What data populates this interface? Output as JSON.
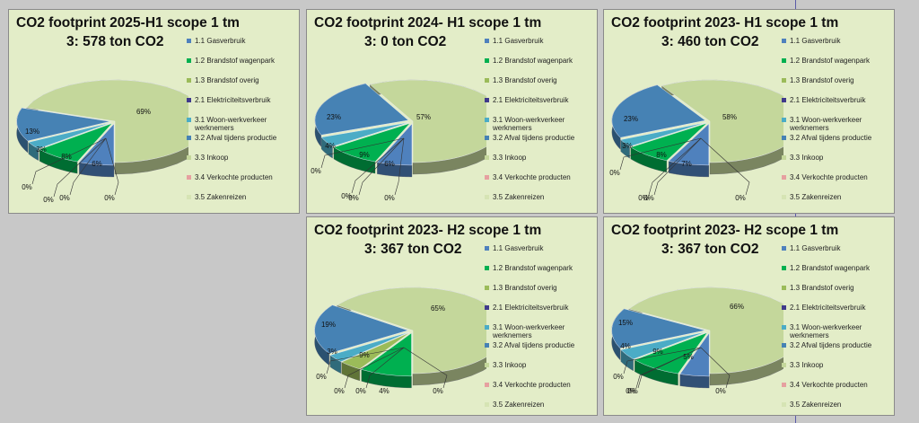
{
  "legend_labels": [
    "1.1 Gasverbruik",
    "1.2 Brandstof wagenpark",
    "1.3 Brandstof overig",
    "2.1 Elektriciteitsverbruik",
    "3.1 Woon-werkverkeer werknemers",
    "3.2 Afval tijdens productie",
    "3.3 Inkoop",
    "3.4 Verkochte producten",
    "3.5 Zakenreizen"
  ],
  "series_colors": [
    "#4f81bd",
    "#00b050",
    "#9bbb59",
    "#403a8c",
    "#4bacc6",
    "#4682b4",
    "#c4d79b",
    "#e6a0a0",
    "#d6e4b4"
  ],
  "chart_data": [
    {
      "type": "pie",
      "title_line1": "CO2 footprint 2025-H1 scope 1 tm",
      "title_line2": "3: 578 ton CO2",
      "legend_placement": "right",
      "categories": [
        "1.1 Gasverbruik",
        "1.2 Brandstof wagenpark",
        "1.3 Brandstof overig",
        "2.1 Elektriciteitsverbruik",
        "3.1 Woon-werkverkeer werknemers",
        "3.2 Afval tijdens productie",
        "3.3 Inkoop",
        "3.4 Verkochte producten",
        "3.5 Zakenreizen"
      ],
      "values": [
        6,
        8,
        0,
        0,
        3,
        13,
        69,
        0,
        0
      ],
      "data_labels": [
        "6%",
        "8%",
        "0%",
        "0%",
        "3%",
        "13%",
        "69%",
        "0%",
        "0%"
      ]
    },
    {
      "type": "pie",
      "title_line1": "CO2 footprint 2024- H1 scope 1 tm",
      "title_line2": "3: 0 ton CO2",
      "legend_placement": "right",
      "categories": [
        "1.1 Gasverbruik",
        "1.2 Brandstof wagenpark",
        "1.3 Brandstof overig",
        "2.1 Elektriciteitsverbruik",
        "3.1 Woon-werkverkeer werknemers",
        "3.2 Afval tijdens productie",
        "3.3 Inkoop",
        "3.4 Verkochte producten",
        "3.5 Zakenreizen"
      ],
      "values": [
        6,
        9,
        0,
        0,
        4,
        23,
        57,
        0,
        0
      ],
      "data_labels": [
        "6%",
        "9%",
        "0%",
        "0%",
        "4%",
        "23%",
        "57%",
        "0%",
        "0%"
      ]
    },
    {
      "type": "pie",
      "title_line1": "CO2 footprint 2023- H1 scope 1 tm",
      "title_line2": "3: 460 ton CO2",
      "legend_placement": "right",
      "categories": [
        "1.1 Gasverbruik",
        "1.2 Brandstof wagenpark",
        "1.3 Brandstof overig",
        "2.1 Elektriciteitsverbruik",
        "3.1 Woon-werkverkeer werknemers",
        "3.2 Afval tijdens productie",
        "3.3 Inkoop",
        "3.4 Verkochte producten",
        "3.5 Zakenreizen"
      ],
      "values": [
        7,
        8,
        0,
        0,
        3,
        23,
        58,
        0,
        0
      ],
      "data_labels": [
        "7%",
        "8%",
        "0%",
        "0%",
        "3%",
        "23%",
        "58%",
        "0%",
        "0%"
      ]
    },
    {
      "type": "pie",
      "title_line1": "CO2 footprint 2023- H2 scope 1 tm",
      "title_line2": "3: 367 ton CO2",
      "legend_placement": "right",
      "categories": [
        "1.1 Gasverbruik",
        "1.2 Brandstof wagenpark",
        "1.3 Brandstof overig",
        "2.1 Elektriciteitsverbruik",
        "3.1 Woon-werkverkeer werknemers",
        "3.2 Afval tijdens productie",
        "3.3 Inkoop",
        "3.4 Verkochte producten",
        "3.5 Zakenreizen"
      ],
      "values": [
        0,
        9,
        4,
        0,
        3,
        19,
        65,
        0,
        0
      ],
      "data_labels": [
        "0%",
        "9%",
        "4%",
        "0%",
        "3%",
        "19%",
        "65%",
        "0%",
        "0%"
      ]
    },
    {
      "type": "pie",
      "title_line1": "CO2 footprint 2023- H2 scope 1 tm",
      "title_line2": "3: 367 ton CO2",
      "legend_placement": "right",
      "categories": [
        "1.1 Gasverbruik",
        "1.2 Brandstof wagenpark",
        "1.3 Brandstof overig",
        "2.1 Elektriciteitsverbruik",
        "3.1 Woon-werkverkeer werknemers",
        "3.2 Afval tijdens productie",
        "3.3 Inkoop",
        "3.4 Verkochte producten",
        "3.5 Zakenreizen"
      ],
      "values": [
        5,
        9,
        0,
        0,
        4,
        15,
        66,
        0,
        0
      ],
      "data_labels": [
        "5%",
        "9%",
        "0%",
        "0%",
        "4%",
        "15%",
        "66%",
        "0%",
        "0%"
      ]
    }
  ]
}
